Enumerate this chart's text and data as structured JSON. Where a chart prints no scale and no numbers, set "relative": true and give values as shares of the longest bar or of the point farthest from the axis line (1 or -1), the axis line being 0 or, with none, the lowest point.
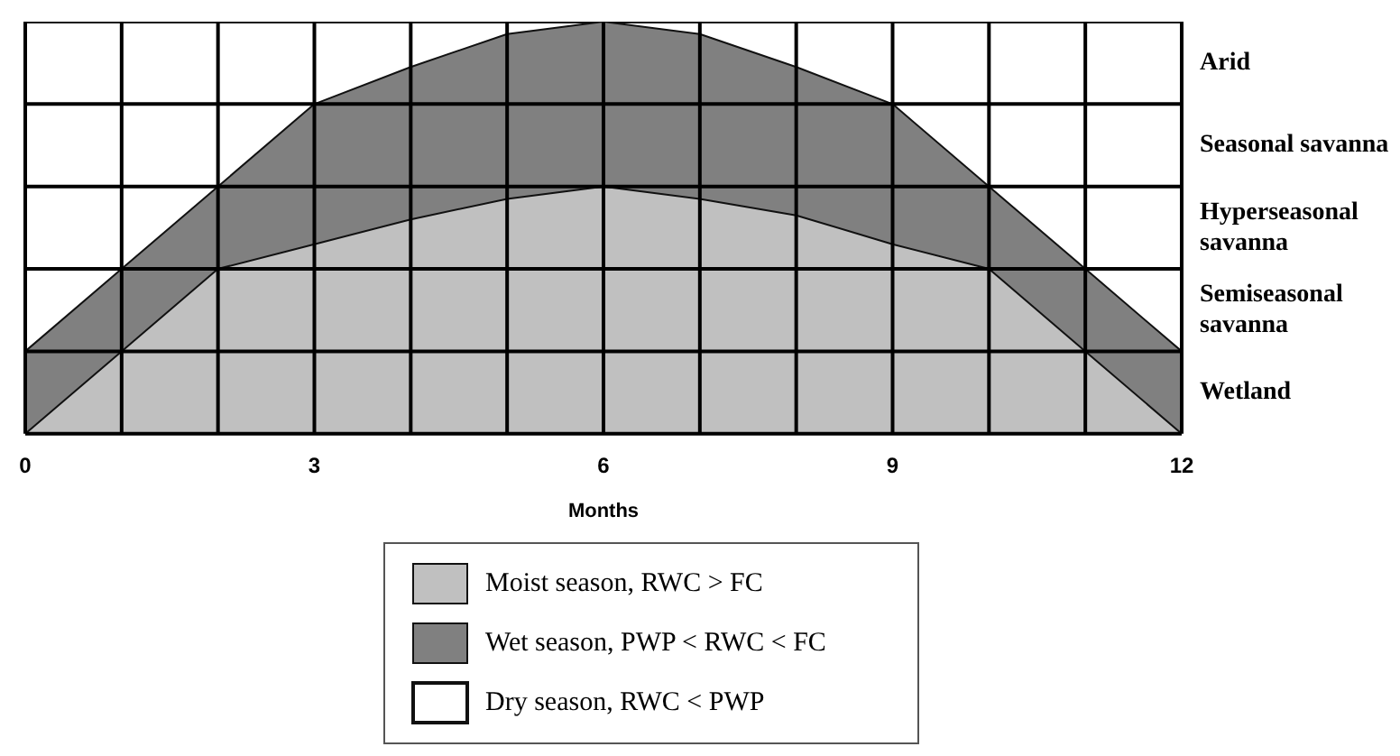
{
  "chart_data": {
    "type": "area",
    "xlabel": "Months",
    "relative": true,
    "grid": true,
    "legend": "bottom",
    "tick_labels": "x",
    "x": [
      0,
      1,
      2,
      3,
      4,
      5,
      6,
      7,
      8,
      9,
      10,
      11,
      12
    ],
    "xlim": [
      0,
      12
    ],
    "xticks": [
      0,
      {
        "value": 1,
        "label": null
      },
      {
        "value": 2,
        "label": null
      },
      3,
      {
        "value": 4,
        "label": null
      },
      {
        "value": 5,
        "label": null
      },
      6,
      {
        "value": 7,
        "label": null
      },
      {
        "value": 8,
        "label": null
      },
      9,
      {
        "value": 10,
        "label": null
      },
      {
        "value": 11,
        "label": null
      },
      12
    ],
    "series": [
      {
        "name": "Moist season, RWC > FC",
        "color": "#c0c0c0",
        "values": [
          0,
          0.2,
          0.4,
          0.46,
          0.52,
          0.57,
          0.6,
          0.57,
          0.53,
          0.46,
          0.4,
          0.2,
          0
        ]
      },
      {
        "name": "Wet season, PWP < RWC < FC",
        "color": "#808080",
        "values": [
          0.2,
          0.4,
          0.6,
          0.8,
          0.89,
          0.97,
          1,
          0.97,
          0.89,
          0.8,
          0.6,
          0.4,
          0.2
        ]
      },
      {
        "name": "Dry season, RWC < PWP",
        "color": "#ffffff",
        "values": [
          1,
          1,
          1,
          1,
          1,
          1,
          1,
          1,
          1,
          1,
          1,
          1,
          1
        ]
      }
    ],
    "annotations": [
      "Arid",
      "Seasonal savanna",
      "Hyperseasonal savanna",
      "Semiseasonal savanna",
      "Wetland"
    ]
  }
}
